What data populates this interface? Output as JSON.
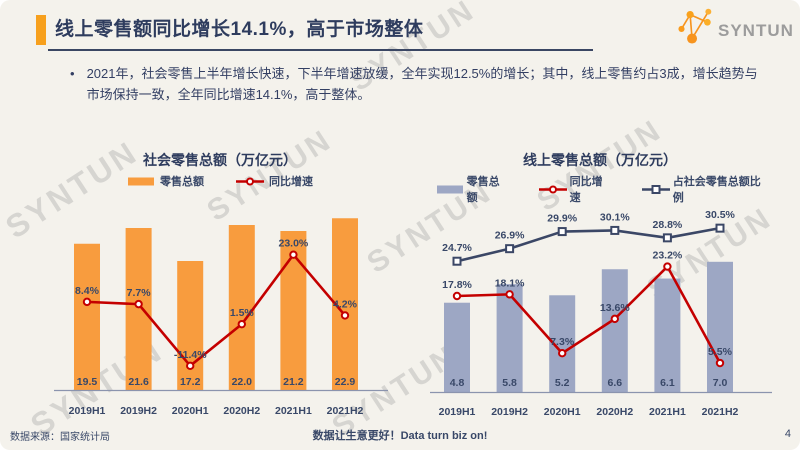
{
  "slide": {
    "title": "线上零售额同比增长14.1%，高于市场整体",
    "bullet_marker": "•",
    "bullet": "2021年，社会零售上半年增长快速，下半年增速放缓，全年实现12.5%的增长；其中，线上零售约占3成，增长趋势与市场保持一致，全年同比增速14.1%，高于整体。",
    "logo_text": "SYNTUN",
    "watermark_text": "SYNTUN",
    "footer": {
      "source": "数据来源：国家统计局",
      "slogan": "数据让生意更好！Data turn biz on!",
      "page_number": "4"
    }
  },
  "colors": {
    "background": "#f4f2ec",
    "accent_orange": "#f7a01d",
    "bar_orange": "#f89c3e",
    "bar_blue": "#9da7c4",
    "line_red": "#c40000",
    "line_navy": "#3b4766",
    "text_navy": "#394868",
    "title_navy": "#2e3c5e",
    "axis_gray": "#8b94ae",
    "watermark_gray": "#9e9e9e",
    "logo_gray": "#9c9c9c"
  },
  "chart_data": [
    {
      "type": "bar",
      "combo": "bar+line",
      "title": "社会零售总额（万亿元）",
      "categories": [
        "2019H1",
        "2019H2",
        "2020H1",
        "2020H2",
        "2021H1",
        "2021H2"
      ],
      "grid": false,
      "legend_position": "top",
      "series": [
        {
          "name": "零售总额",
          "type": "bar",
          "unit": "万亿元",
          "values": [
            19.5,
            21.6,
            17.2,
            22.0,
            21.2,
            22.9
          ],
          "labels": [
            "19.5",
            "21.6",
            "17.2",
            "22.0",
            "21.2",
            "22.9"
          ]
        },
        {
          "name": "同比增速",
          "type": "line",
          "marker": "circle",
          "unit": "%",
          "values": [
            8.4,
            7.7,
            -11.4,
            1.5,
            23.0,
            4.2
          ],
          "labels": [
            "8.4%",
            "7.7%",
            "-11.4%",
            "1.5%",
            "23.0%",
            "4.2%"
          ]
        }
      ]
    },
    {
      "type": "bar",
      "combo": "bar+2lines",
      "title": "线上零售总额（万亿元）",
      "categories": [
        "2019H1",
        "2019H2",
        "2020H1",
        "2020H2",
        "2021H1",
        "2021H2"
      ],
      "grid": false,
      "legend_position": "top",
      "series": [
        {
          "name": "零售总额",
          "type": "bar",
          "unit": "万亿元",
          "values": [
            4.8,
            5.8,
            5.2,
            6.6,
            6.1,
            7.0
          ],
          "labels": [
            "4.8",
            "5.8",
            "5.2",
            "6.6",
            "6.1",
            "7.0"
          ]
        },
        {
          "name": "同比增速",
          "type": "line",
          "marker": "circle",
          "unit": "%",
          "values": [
            17.8,
            18.1,
            7.3,
            13.6,
            23.2,
            5.5
          ],
          "labels": [
            "17.8%",
            "18.1%",
            "7.3%",
            "13.6%",
            "23.2%",
            "5.5%"
          ]
        },
        {
          "name": "占社会零售总额比例",
          "type": "line",
          "marker": "square",
          "unit": "%",
          "values": [
            24.7,
            26.9,
            29.9,
            30.1,
            28.8,
            30.5
          ],
          "labels": [
            "24.7%",
            "26.9%",
            "29.9%",
            "30.1%",
            "28.8%",
            "30.5%"
          ]
        }
      ]
    }
  ]
}
